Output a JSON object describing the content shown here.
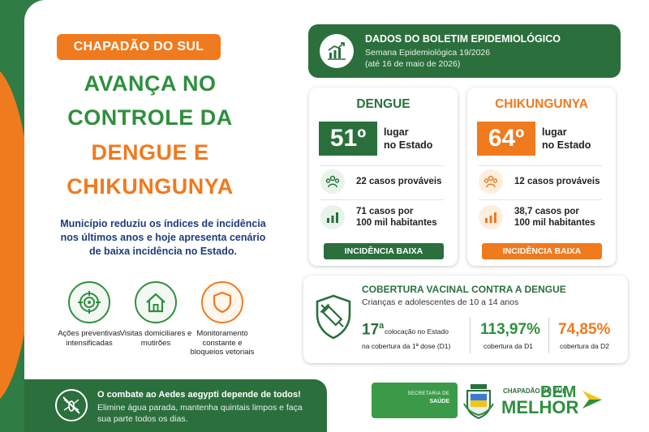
{
  "city": "CHAPADÃO DO SUL",
  "headline": {
    "line1": "AVANÇA NO",
    "line2": "CONTROLE DA",
    "line3": "DENGUE E",
    "line4": "CHIKUNGUNYA"
  },
  "intro": "Município reduziu os índices de incidência nos últimos anos e hoje apresenta cenário de baixa incidência no Estado.",
  "actions": [
    {
      "label": "Ações preventivas intensificadas",
      "icon": "target-icon"
    },
    {
      "label": "Visitas domiciliares e mutirões",
      "icon": "house-icon"
    },
    {
      "label": "Monitoramento constante e bloqueios vetoriais",
      "icon": "shield-icon"
    }
  ],
  "footer": {
    "title": "O combate ao Aedes aegypti depende de todos!",
    "text": "Elimine água parada, mantenha quintais limpos e faça sua parte todos os dias."
  },
  "bulletin": {
    "title": "DADOS DO BOLETIM EPIDEMIOLÓGICO",
    "week": "Semana Epidemiológica 19/2026",
    "until": "(até 16 de maio de 2026)"
  },
  "dengue": {
    "title": "DENGUE",
    "rank": "51º",
    "rank_label_1": "lugar",
    "rank_label_2": "no Estado",
    "cases": "22 casos prováveis",
    "rate_1": "71 casos por",
    "rate_2": "100 mil habitantes",
    "badge": "INCIDÊNCIA BAIXA"
  },
  "chik": {
    "title": "CHIKUNGUNYA",
    "rank": "64º",
    "rank_label_1": "lugar",
    "rank_label_2": "no Estado",
    "cases": "12 casos prováveis",
    "rate_1": "38,7 casos por",
    "rate_2": "100 mil habitantes",
    "badge": "INCIDÊNCIA BAIXA"
  },
  "vaccination": {
    "title": "COBERTURA VACINAL CONTRA A DENGUE",
    "subtitle": "Crianças e adolescentes de 10 a 14 anos",
    "rank_num": "17",
    "rank_sup": "a",
    "rank_l1": "colocação no Estado",
    "rank_l2": "na cobertura da 1ª dose (D1)",
    "d1_value": "113,97%",
    "d1_label": "cobertura da D1",
    "d2_value": "74,85%",
    "d2_label": "cobertura da D2"
  },
  "logos": {
    "sec_line1": "SECRETARIA DE",
    "sec_line2": "SAÚDE",
    "city_small": "CHAPADÃO DO SUL",
    "bem": "BEM",
    "melhor": "MELHOR"
  },
  "colors": {
    "green": "#2f8f3e",
    "dark_green": "#2b6f3d",
    "orange": "#f07a1e",
    "navy": "#1f3b7a"
  }
}
